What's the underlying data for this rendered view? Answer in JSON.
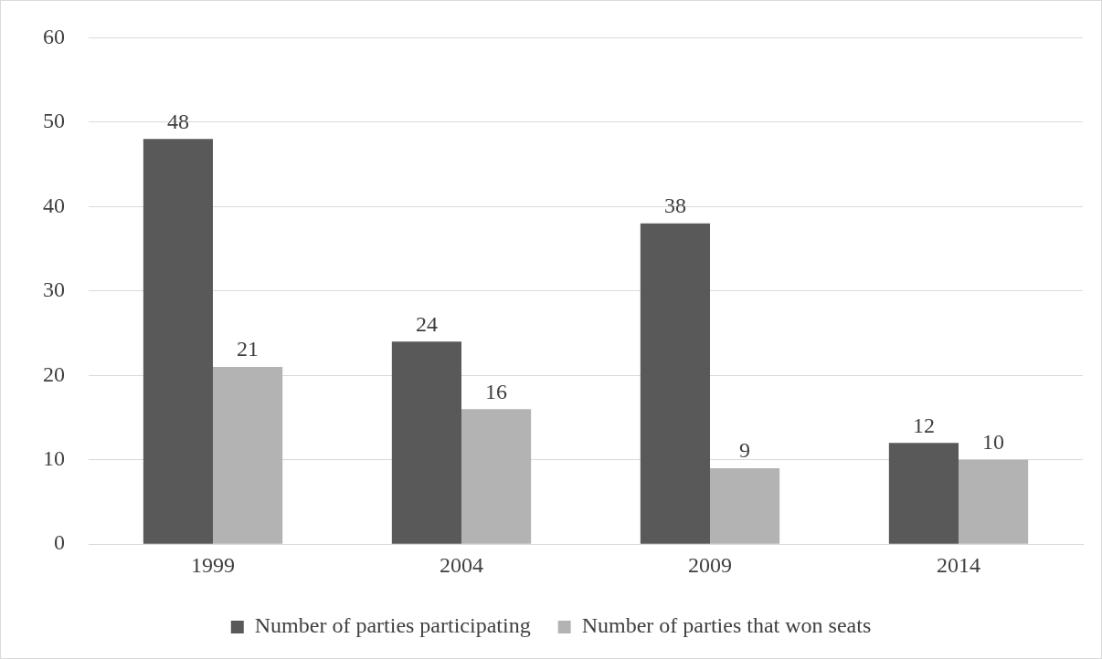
{
  "chart_data": {
    "type": "bar",
    "categories": [
      "1999",
      "2004",
      "2009",
      "2014"
    ],
    "series": [
      {
        "name": "Number of parties participating",
        "color": "#595959",
        "values": [
          48,
          24,
          38,
          12
        ]
      },
      {
        "name": "Number of parties that won seats",
        "color": "#b3b3b3",
        "values": [
          21,
          16,
          9,
          10
        ]
      }
    ],
    "ylim": [
      0,
      60
    ],
    "yticks": [
      0,
      10,
      20,
      30,
      40,
      50,
      60
    ],
    "grid": "y",
    "legend": "bottom",
    "data_labels": true
  }
}
